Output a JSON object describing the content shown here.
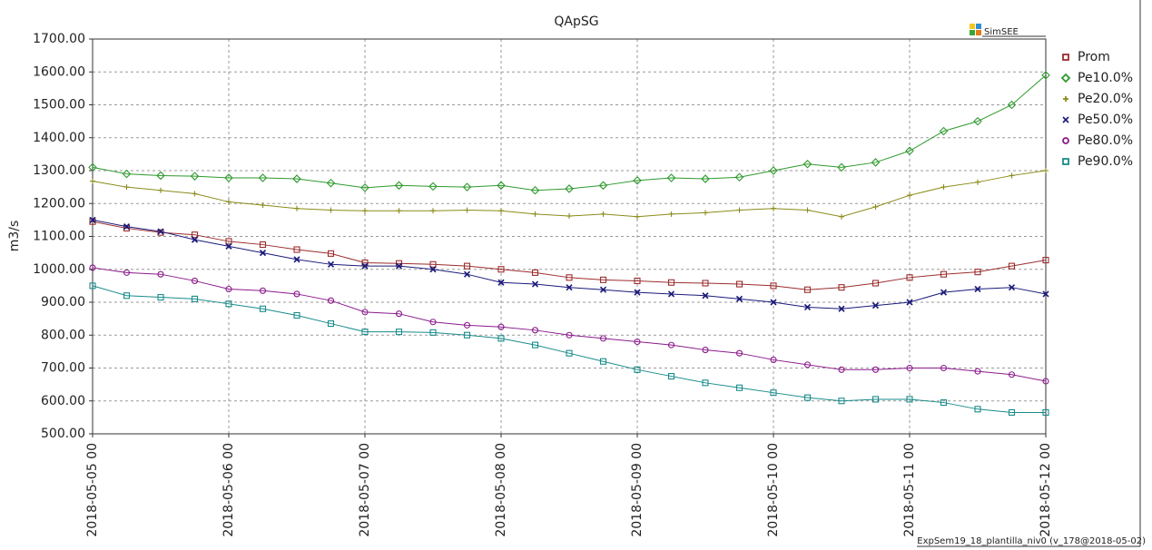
{
  "chart_data": {
    "type": "line",
    "title": "QApSG",
    "y_label": "m3/s",
    "logo": "SimSEE",
    "footer": "ExpSem19_18_plantilla_niv0 (v_178@2018-05-02)",
    "grid": true,
    "legend": "right",
    "x": [
      "2018-05-05 00",
      "2018-05-05 06",
      "2018-05-05 12",
      "2018-05-05 18",
      "2018-05-06 00",
      "2018-05-06 06",
      "2018-05-06 12",
      "2018-05-06 18",
      "2018-05-07 00",
      "2018-05-07 06",
      "2018-05-07 12",
      "2018-05-07 18",
      "2018-05-08 00",
      "2018-05-08 06",
      "2018-05-08 12",
      "2018-05-08 18",
      "2018-05-09 00",
      "2018-05-09 06",
      "2018-05-09 12",
      "2018-05-09 18",
      "2018-05-10 00",
      "2018-05-10 06",
      "2018-05-10 12",
      "2018-05-10 18",
      "2018-05-11 00",
      "2018-05-11 06",
      "2018-05-11 12",
      "2018-05-11 18",
      "2018-05-12 00"
    ],
    "xlim": [
      "2018-05-05 00",
      "2018-05-12 00"
    ],
    "xticks": [
      "2018-05-05 00",
      "2018-05-06 00",
      "2018-05-07 00",
      "2018-05-08 00",
      "2018-05-09 00",
      "2018-05-10 00",
      "2018-05-11 00",
      "2018-05-12 00"
    ],
    "ylim": [
      500,
      1700
    ],
    "yticks": [
      {
        "value": 500,
        "label": "500.00"
      },
      {
        "value": 600,
        "label": "600.00"
      },
      {
        "value": 700,
        "label": "700.00"
      },
      {
        "value": 800,
        "label": "800.00"
      },
      {
        "value": 900,
        "label": "900.00"
      },
      {
        "value": 1000,
        "label": "1000.00"
      },
      {
        "value": 1100,
        "label": "1100.00"
      },
      {
        "value": 1200,
        "label": "1200.00"
      },
      {
        "value": 1300,
        "label": "1300.00"
      },
      {
        "value": 1400,
        "label": "1400.00"
      },
      {
        "value": 1500,
        "label": "1500.00"
      },
      {
        "value": 1600,
        "label": "1600.00"
      },
      {
        "value": 1700,
        "label": "1700.00"
      }
    ],
    "series": [
      {
        "name": "Prom",
        "color": "#9b2d2d",
        "marker": "square",
        "values": [
          1145,
          1125,
          1112,
          1105,
          1085,
          1075,
          1060,
          1048,
          1020,
          1018,
          1015,
          1010,
          1000,
          990,
          975,
          968,
          965,
          960,
          958,
          955,
          950,
          938,
          945,
          958,
          975,
          985,
          992,
          1010,
          1028
        ]
      },
      {
        "name": "Pe10.0%",
        "color": "#2e9a2e",
        "marker": "diamond",
        "values": [
          1310,
          1290,
          1285,
          1283,
          1278,
          1278,
          1275,
          1262,
          1248,
          1255,
          1252,
          1250,
          1255,
          1240,
          1245,
          1255,
          1270,
          1278,
          1275,
          1280,
          1300,
          1320,
          1310,
          1325,
          1360,
          1420,
          1450,
          1500,
          1590
        ]
      },
      {
        "name": "Pe20.0%",
        "color": "#8b8b1a",
        "marker": "plus",
        "values": [
          1268,
          1250,
          1240,
          1230,
          1205,
          1195,
          1185,
          1180,
          1178,
          1178,
          1178,
          1180,
          1178,
          1168,
          1162,
          1168,
          1160,
          1168,
          1172,
          1180,
          1185,
          1180,
          1160,
          1190,
          1225,
          1250,
          1265,
          1285,
          1300
        ]
      },
      {
        "name": "Pe50.0%",
        "color": "#1a1a7a",
        "marker": "cross",
        "values": [
          1150,
          1130,
          1115,
          1090,
          1070,
          1050,
          1030,
          1015,
          1010,
          1010,
          1000,
          985,
          960,
          955,
          945,
          938,
          930,
          925,
          920,
          910,
          900,
          885,
          880,
          890,
          900,
          930,
          940,
          945,
          925
        ]
      },
      {
        "name": "Pe80.0%",
        "color": "#8b1a8b",
        "marker": "circle",
        "values": [
          1005,
          990,
          985,
          965,
          940,
          935,
          925,
          905,
          870,
          865,
          840,
          830,
          825,
          815,
          800,
          790,
          780,
          770,
          755,
          745,
          725,
          710,
          695,
          695,
          700,
          700,
          690,
          680,
          660
        ]
      },
      {
        "name": "Pe90.0%",
        "color": "#1a8b8b",
        "marker": "square",
        "values": [
          950,
          920,
          915,
          910,
          895,
          880,
          860,
          835,
          810,
          810,
          808,
          800,
          790,
          770,
          745,
          720,
          695,
          675,
          655,
          640,
          625,
          610,
          600,
          605,
          605,
          595,
          575,
          565,
          565
        ]
      }
    ]
  }
}
